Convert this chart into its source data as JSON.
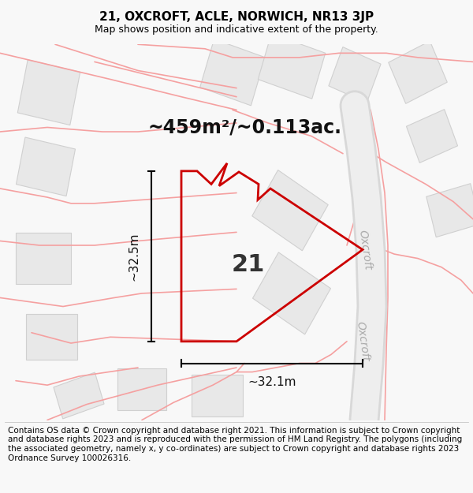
{
  "title": "21, OXCROFT, ACLE, NORWICH, NR13 3JP",
  "subtitle": "Map shows position and indicative extent of the property.",
  "area_text": "~459m²/~0.113ac.",
  "label_21": "21",
  "dim_vertical": "~32.5m",
  "dim_horizontal": "~32.1m",
  "footer": "Contains OS data © Crown copyright and database right 2021. This information is subject to Crown copyright and database rights 2023 and is reproduced with the permission of HM Land Registry. The polygons (including the associated geometry, namely x, y co-ordinates) are subject to Crown copyright and database rights 2023 Ordnance Survey 100026316.",
  "title_fontsize": 11,
  "subtitle_fontsize": 9,
  "area_fontsize": 17,
  "label_fontsize": 22,
  "dim_fontsize": 11,
  "footer_fontsize": 7.5,
  "map_bg": "#ffffff",
  "fig_bg": "#f8f8f8",
  "road_color": "#f5a0a0",
  "building_face": "#e8e8e8",
  "building_edge": "#d0d0d0",
  "red_line": "#cc0000",
  "oxcroft_band_color": "#e0e0e0",
  "oxcroft_text_color": "#aaaaaa"
}
